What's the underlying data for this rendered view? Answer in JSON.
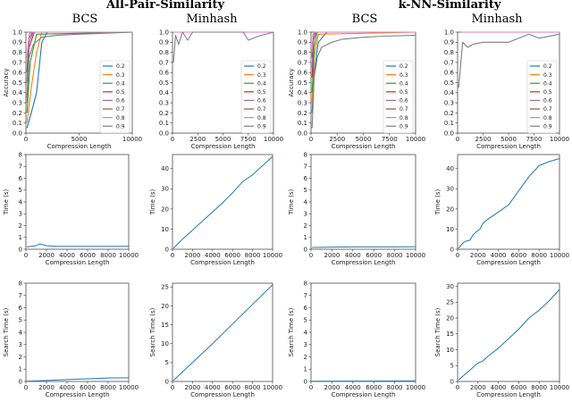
{
  "figure": {
    "titles": [
      {
        "id": "t1",
        "text": "All-Pair-Similarity"
      },
      {
        "id": "t2",
        "text": "k-NN-Similarity"
      }
    ],
    "column_titles": [
      "BCS",
      "Minhash",
      "BCS",
      "Minhash"
    ]
  },
  "colors": {
    "0.2": "#1f77b4",
    "0.3": "#ff7f0e",
    "0.4": "#2ca02c",
    "0.5": "#d62728",
    "0.6": "#9467bd",
    "0.7": "#8c564b",
    "0.8": "#e377c2",
    "0.9": "#7f7f7f"
  },
  "chart_data": [
    {
      "type": "line",
      "id": "acc-apss-bcs",
      "title": "BCS",
      "xlabel": "Compression Length",
      "ylabel": "Accuracy",
      "xlim": [
        0,
        10000
      ],
      "ylim": [
        0,
        1.0
      ],
      "xticks": [
        "0",
        "5000",
        "10000"
      ],
      "yticks": [
        "0.0",
        "0.1",
        "0.2",
        "0.3",
        "0.4",
        "0.5",
        "0.6",
        "0.7",
        "0.8",
        "0.9",
        "1.0"
      ],
      "legend": {
        "placement": "right",
        "entries": [
          "0.2",
          "0.3",
          "0.4",
          "0.5",
          "0.6",
          "0.7",
          "0.8",
          "0.9"
        ]
      },
      "series": [
        {
          "name": "0.2",
          "x": [
            100,
            500,
            1000,
            1500,
            2000,
            10000
          ],
          "y": [
            0.05,
            0.2,
            0.4,
            0.9,
            1.0,
            1.0
          ]
        },
        {
          "name": "0.3",
          "x": [
            100,
            500,
            1000,
            1500,
            10000
          ],
          "y": [
            0.1,
            0.45,
            0.8,
            1.0,
            1.0
          ]
        },
        {
          "name": "0.4",
          "x": [
            100,
            400,
            1000,
            10000
          ],
          "y": [
            0.2,
            0.7,
            0.98,
            1.0
          ]
        },
        {
          "name": "0.5",
          "x": [
            100,
            300,
            800,
            10000
          ],
          "y": [
            0.35,
            0.85,
            1.0,
            1.0
          ]
        },
        {
          "name": "0.6",
          "x": [
            100,
            300,
            700,
            10000
          ],
          "y": [
            0.5,
            0.9,
            1.0,
            1.0
          ]
        },
        {
          "name": "0.7",
          "x": [
            100,
            250,
            600,
            10000
          ],
          "y": [
            0.6,
            0.93,
            1.0,
            1.0
          ]
        },
        {
          "name": "0.8",
          "x": [
            100,
            300,
            500,
            10000
          ],
          "y": [
            0.75,
            0.98,
            1.0,
            1.0
          ]
        },
        {
          "name": "0.9",
          "x": [
            100,
            300,
            700,
            1500,
            3000,
            5000,
            10000
          ],
          "y": [
            0.3,
            0.75,
            0.88,
            0.95,
            0.97,
            0.98,
            1.0
          ]
        }
      ]
    },
    {
      "type": "line",
      "id": "acc-apss-minhash",
      "title": "Minhash",
      "xlabel": "Compression Length",
      "ylabel": "",
      "xlim": [
        0,
        10000
      ],
      "ylim": [
        0,
        1.0
      ],
      "xticks": [
        "0",
        "2500",
        "5000",
        "7500",
        "10000"
      ],
      "yticks": [
        "0.0",
        "0.1",
        "0.2",
        "0.3",
        "0.4",
        "0.5",
        "0.6",
        "0.7",
        "0.8",
        "0.9",
        "1.0"
      ],
      "legend": {
        "placement": "right",
        "entries": [
          "0.2",
          "0.3",
          "0.4",
          "0.5",
          "0.6",
          "0.7",
          "0.8",
          "0.9"
        ]
      },
      "series": [
        {
          "name": "0.2",
          "x": [
            100,
            10000
          ],
          "y": [
            1.0,
            1.0
          ]
        },
        {
          "name": "0.3",
          "x": [
            100,
            10000
          ],
          "y": [
            1.0,
            1.0
          ]
        },
        {
          "name": "0.4",
          "x": [
            100,
            10000
          ],
          "y": [
            1.0,
            1.0
          ]
        },
        {
          "name": "0.5",
          "x": [
            100,
            10000
          ],
          "y": [
            1.0,
            1.0
          ]
        },
        {
          "name": "0.6",
          "x": [
            100,
            10000
          ],
          "y": [
            1.0,
            1.0
          ]
        },
        {
          "name": "0.7",
          "x": [
            100,
            10000
          ],
          "y": [
            1.0,
            1.0
          ]
        },
        {
          "name": "0.8",
          "x": [
            100,
            10000
          ],
          "y": [
            1.0,
            1.0
          ]
        },
        {
          "name": "0.9",
          "x": [
            100,
            300,
            600,
            1000,
            1500,
            2000,
            3000,
            5000,
            7000,
            7500,
            8500,
            10000
          ],
          "y": [
            0.7,
            0.97,
            0.88,
            1.0,
            0.92,
            1.0,
            1.0,
            1.0,
            1.0,
            0.92,
            0.96,
            1.0
          ]
        }
      ]
    },
    {
      "type": "line",
      "id": "acc-knn-bcs",
      "title": "BCS",
      "xlabel": "Compression Length",
      "ylabel": "Accuracy",
      "xlim": [
        0,
        10000
      ],
      "ylim": [
        0,
        1.0
      ],
      "xticks": [
        "0",
        "2500",
        "5000",
        "7500",
        "10000"
      ],
      "yticks": [
        "0.0",
        "0.1",
        "0.2",
        "0.3",
        "0.4",
        "0.5",
        "0.6",
        "0.7",
        "0.8",
        "0.9",
        "1.0"
      ],
      "legend": {
        "placement": "right",
        "entries": [
          "0.2",
          "0.3",
          "0.4",
          "0.5",
          "0.6",
          "0.7",
          "0.8",
          "0.9"
        ]
      },
      "series": [
        {
          "name": "0.2",
          "x": [
            100,
            300,
            700,
            1500,
            10000
          ],
          "y": [
            0.2,
            0.6,
            0.9,
            1.0,
            1.0
          ]
        },
        {
          "name": "0.3",
          "x": [
            100,
            300,
            700,
            10000
          ],
          "y": [
            0.3,
            0.75,
            0.98,
            1.0
          ]
        },
        {
          "name": "0.4",
          "x": [
            100,
            300,
            600,
            10000
          ],
          "y": [
            0.4,
            0.85,
            1.0,
            1.0
          ]
        },
        {
          "name": "0.5",
          "x": [
            100,
            250,
            500,
            10000
          ],
          "y": [
            0.55,
            0.92,
            1.0,
            1.0
          ]
        },
        {
          "name": "0.6",
          "x": [
            100,
            250,
            500,
            10000
          ],
          "y": [
            0.65,
            0.95,
            1.0,
            1.0
          ]
        },
        {
          "name": "0.7",
          "x": [
            100,
            200,
            400,
            10000
          ],
          "y": [
            0.75,
            0.97,
            1.0,
            1.0
          ]
        },
        {
          "name": "0.8",
          "x": [
            100,
            200,
            400,
            10000
          ],
          "y": [
            0.8,
            0.98,
            1.0,
            1.0
          ]
        },
        {
          "name": "0.9",
          "x": [
            100,
            300,
            600,
            1000,
            2000,
            3000,
            5000,
            7000,
            10000
          ],
          "y": [
            0.05,
            0.55,
            0.75,
            0.85,
            0.9,
            0.93,
            0.95,
            0.96,
            0.97
          ]
        }
      ]
    },
    {
      "type": "line",
      "id": "acc-knn-minhash",
      "title": "Minhash",
      "xlabel": "Compression Length",
      "ylabel": "",
      "xlim": [
        0,
        10000
      ],
      "ylim": [
        0,
        1.0
      ],
      "xticks": [
        "0",
        "2500",
        "5000",
        "7500",
        "10000"
      ],
      "yticks": [
        "0.0",
        "0.1",
        "0.2",
        "0.3",
        "0.4",
        "0.5",
        "0.6",
        "0.7",
        "0.8",
        "0.9",
        "1.0"
      ],
      "legend": {
        "placement": "right",
        "entries": [
          "0.2",
          "0.3",
          "0.4",
          "0.5",
          "0.6",
          "0.7",
          "0.8",
          "0.9"
        ]
      },
      "series": [
        {
          "name": "0.2",
          "x": [
            100,
            10000
          ],
          "y": [
            1.0,
            1.0
          ]
        },
        {
          "name": "0.3",
          "x": [
            100,
            10000
          ],
          "y": [
            1.0,
            1.0
          ]
        },
        {
          "name": "0.4",
          "x": [
            100,
            10000
          ],
          "y": [
            1.0,
            1.0
          ]
        },
        {
          "name": "0.5",
          "x": [
            100,
            10000
          ],
          "y": [
            1.0,
            1.0
          ]
        },
        {
          "name": "0.6",
          "x": [
            100,
            10000
          ],
          "y": [
            1.0,
            1.0
          ]
        },
        {
          "name": "0.7",
          "x": [
            100,
            10000
          ],
          "y": [
            1.0,
            1.0
          ]
        },
        {
          "name": "0.8",
          "x": [
            300,
            10000
          ],
          "y": [
            1.0,
            1.0
          ]
        },
        {
          "name": "0.9",
          "x": [
            100,
            500,
            1000,
            1500,
            2500,
            5000,
            7000,
            8000,
            10000
          ],
          "y": [
            0.45,
            0.9,
            0.85,
            0.88,
            0.9,
            0.9,
            0.98,
            0.94,
            0.98
          ]
        }
      ]
    },
    {
      "type": "line",
      "id": "time-apss-bcs",
      "title": "",
      "xlabel": "Compression Length",
      "ylabel": "Time (s)",
      "xlim": [
        0,
        10000
      ],
      "ylim": [
        0,
        8
      ],
      "xticks": [
        "0",
        "2000",
        "4000",
        "6000",
        "8000",
        "10000"
      ],
      "yticks": [
        "0",
        "1",
        "2",
        "3",
        "4",
        "5",
        "6",
        "7",
        "8"
      ],
      "series": [
        {
          "name": "",
          "x": [
            100,
            500,
            1000,
            1300,
            1600,
            2000,
            3000,
            5000,
            8000,
            10000
          ],
          "y": [
            0.2,
            0.25,
            0.3,
            0.45,
            0.4,
            0.3,
            0.25,
            0.25,
            0.25,
            0.25
          ]
        }
      ]
    },
    {
      "type": "line",
      "id": "time-apss-minhash",
      "title": "",
      "xlabel": "Compression Length",
      "ylabel": "Time (s)",
      "xlim": [
        0,
        10000
      ],
      "ylim": [
        0,
        47
      ],
      "xticks": [
        "0",
        "2000",
        "4000",
        "6000",
        "8000",
        "10000"
      ],
      "yticks": [
        "0",
        "10",
        "20",
        "30",
        "40"
      ],
      "series": [
        {
          "name": "",
          "x": [
            100,
            1000,
            2000,
            3000,
            4000,
            5000,
            6000,
            7000,
            8000,
            9000,
            10000
          ],
          "y": [
            0.5,
            5,
            9.5,
            14,
            18.5,
            23,
            28,
            33.5,
            37,
            41.5,
            46
          ]
        }
      ]
    },
    {
      "type": "line",
      "id": "time-knn-bcs",
      "title": "",
      "xlabel": "Compression Length",
      "ylabel": "Time (s)",
      "xlim": [
        0,
        10000
      ],
      "ylim": [
        0,
        8
      ],
      "xticks": [
        "0",
        "2000",
        "4000",
        "6000",
        "8000",
        "10000"
      ],
      "yticks": [
        "0",
        "1",
        "2",
        "3",
        "4",
        "5",
        "6",
        "7",
        "8"
      ],
      "series": [
        {
          "name": "",
          "x": [
            100,
            2000,
            4000,
            6000,
            8000,
            10000
          ],
          "y": [
            0.15,
            0.18,
            0.2,
            0.2,
            0.2,
            0.22
          ]
        }
      ]
    },
    {
      "type": "line",
      "id": "time-knn-minhash",
      "title": "",
      "xlabel": "Compression Length",
      "ylabel": "Time (s)",
      "xlim": [
        0,
        10000
      ],
      "ylim": [
        0,
        47
      ],
      "xticks": [
        "0",
        "2000",
        "4000",
        "6000",
        "8000",
        "10000"
      ],
      "yticks": [
        "0",
        "10",
        "20",
        "30",
        "40"
      ],
      "series": [
        {
          "name": "",
          "x": [
            100,
            500,
            800,
            1200,
            1500,
            1800,
            2200,
            2500,
            3000,
            4000,
            5000,
            6000,
            7000,
            8000,
            9000,
            10000
          ],
          "y": [
            0.5,
            3,
            4,
            4.5,
            7,
            8.5,
            10,
            13,
            15,
            18.5,
            22,
            29,
            36,
            41.5,
            43.5,
            45
          ]
        }
      ]
    },
    {
      "type": "line",
      "id": "search-apss-bcs",
      "title": "",
      "xlabel": "Compression Length",
      "ylabel": "Search Time (s)",
      "xlim": [
        0,
        10000
      ],
      "ylim": [
        0,
        8
      ],
      "xticks": [
        "0",
        "2000",
        "4000",
        "6000",
        "8000",
        "10000"
      ],
      "yticks": [
        "0",
        "1",
        "2",
        "3",
        "4",
        "5",
        "6",
        "7",
        "8"
      ],
      "series": [
        {
          "name": "",
          "x": [
            100,
            2000,
            4000,
            6000,
            8000,
            10000
          ],
          "y": [
            0.02,
            0.08,
            0.15,
            0.22,
            0.28,
            0.3
          ]
        }
      ]
    },
    {
      "type": "line",
      "id": "search-apss-minhash",
      "title": "",
      "xlabel": "Compression Length",
      "ylabel": "Search Time (s)",
      "xlim": [
        0,
        10000
      ],
      "ylim": [
        0,
        26
      ],
      "xticks": [
        "0",
        "2000",
        "4000",
        "6000",
        "8000",
        "10000"
      ],
      "yticks": [
        "0",
        "5",
        "10",
        "15",
        "20",
        "25"
      ],
      "series": [
        {
          "name": "",
          "x": [
            100,
            1000,
            2000,
            3000,
            4000,
            5000,
            6000,
            7000,
            8000,
            9000,
            10000
          ],
          "y": [
            0.3,
            2.5,
            5,
            7.5,
            10,
            12.6,
            15.2,
            17.8,
            20.4,
            23,
            25.6
          ]
        }
      ]
    },
    {
      "type": "line",
      "id": "search-knn-bcs",
      "title": "",
      "xlabel": "Compression Length",
      "ylabel": "Search Time (s)",
      "xlim": [
        0,
        10000
      ],
      "ylim": [
        0,
        8
      ],
      "xticks": [
        "0",
        "2000",
        "4000",
        "6000",
        "8000",
        "10000"
      ],
      "yticks": [
        "0",
        "1",
        "2",
        "3",
        "4",
        "5",
        "6",
        "7",
        "8"
      ],
      "series": [
        {
          "name": "",
          "x": [
            100,
            5000,
            10000
          ],
          "y": [
            0.02,
            0.03,
            0.04
          ]
        }
      ]
    },
    {
      "type": "line",
      "id": "search-knn-minhash",
      "title": "",
      "xlabel": "Compression Length",
      "ylabel": "Search Time (s)",
      "xlim": [
        0,
        10000
      ],
      "ylim": [
        0,
        31
      ],
      "xticks": [
        "0",
        "2000",
        "4000",
        "6000",
        "8000",
        "10000"
      ],
      "yticks": [
        "0",
        "5",
        "10",
        "15",
        "20",
        "25",
        "30"
      ],
      "series": [
        {
          "name": "",
          "x": [
            100,
            1000,
            2000,
            2500,
            3000,
            4000,
            5000,
            6000,
            7000,
            8000,
            9000,
            10000
          ],
          "y": [
            0.5,
            3,
            5.8,
            6.5,
            8,
            10.5,
            13.5,
            16.5,
            20,
            22.5,
            25.5,
            29
          ]
        }
      ]
    }
  ]
}
